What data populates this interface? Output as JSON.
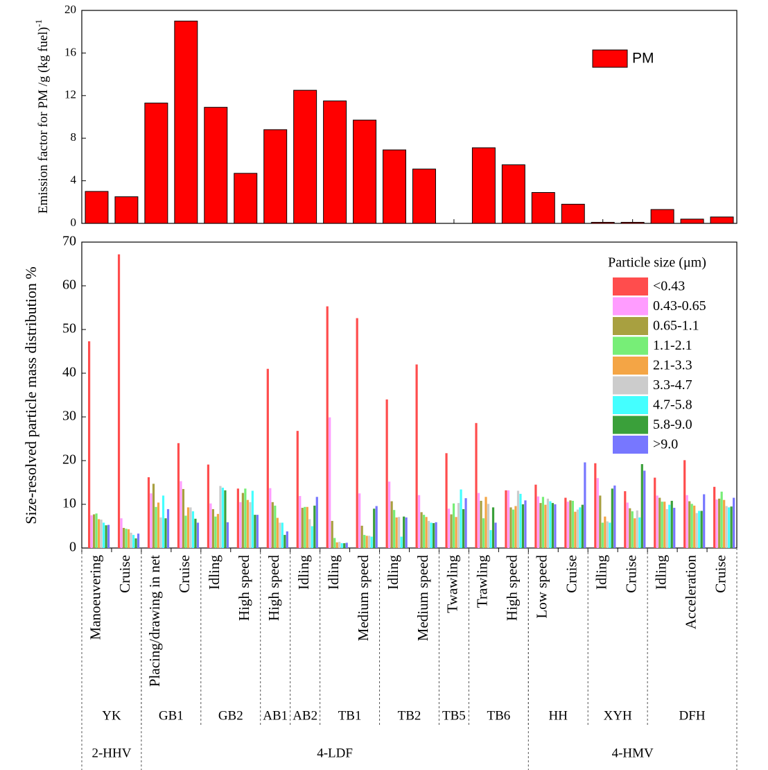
{
  "chart_data": [
    {
      "type": "bar",
      "y_label": "Emission factor for PM /g (kg fuel)",
      "y_label_sup": "-1",
      "series": [
        {
          "name": "PM",
          "color": "#ff0000",
          "values": [
            3.0,
            2.5,
            11.3,
            19.0,
            10.9,
            4.7,
            8.8,
            12.5,
            11.5,
            9.7,
            6.9,
            5.1,
            null,
            7.1,
            5.5,
            2.9,
            1.8,
            0.1,
            0.1,
            1.3,
            0.4,
            0.6
          ]
        }
      ],
      "ylim": [
        0,
        20
      ],
      "yticks": [
        0,
        4,
        8,
        12,
        16,
        20
      ],
      "legend": "upper right"
    },
    {
      "type": "grouped_bar",
      "y_label": "Size-resolved particle mass distribution %",
      "legend_title": "Particle size (μm)",
      "legend": "upper right",
      "categories": [
        "Manoeuvering",
        "Cruise",
        "Placing/drawing in net",
        "Cruise",
        "Idling",
        "High speed",
        "High speed",
        "Idling",
        "Idling",
        "Medium speed",
        "Idling",
        "Medium speed",
        "Twawling",
        "Trawling",
        "High speed",
        "Low speed",
        "Cruise",
        "Idling",
        "Cruise",
        "Idling",
        "Acceleration",
        "Cruise"
      ],
      "groups": [
        {
          "label": "YK",
          "size": 2
        },
        {
          "label": "GB1",
          "size": 2
        },
        {
          "label": "GB2",
          "size": 2
        },
        {
          "label": "AB1",
          "size": 1
        },
        {
          "label": "AB2",
          "size": 1
        },
        {
          "label": "TB1",
          "size": 2
        },
        {
          "label": "TB2",
          "size": 2
        },
        {
          "label": "TB5",
          "size": 1
        },
        {
          "label": "TB6",
          "size": 2
        },
        {
          "label": "HH",
          "size": 2
        },
        {
          "label": "XYH",
          "size": 2
        },
        {
          "label": "DFH",
          "size": 3
        }
      ],
      "types": [
        {
          "label": "2-HHV",
          "size": 2
        },
        {
          "label": "4-LDF",
          "size": 13
        },
        {
          "label": "4-HMV",
          "size": 7
        }
      ],
      "ylim": [
        0,
        70
      ],
      "yticks": [
        0,
        10,
        20,
        30,
        40,
        50,
        60,
        70
      ],
      "series": [
        {
          "name": "<0.43",
          "color": "#ff4d4d",
          "values": [
            47.3,
            67.2,
            16.2,
            24.0,
            19.1,
            13.6,
            41.0,
            26.8,
            55.3,
            52.6,
            34.0,
            42.0,
            21.7,
            28.6,
            13.2,
            14.5,
            11.5,
            19.4,
            13.0,
            16.1,
            20.1,
            14.0
          ]
        },
        {
          "name": "0.43-0.65",
          "color": "#ff9cff",
          "values": [
            7.5,
            6.8,
            12.5,
            15.3,
            10.2,
            10.5,
            13.7,
            11.9,
            29.9,
            12.5,
            15.2,
            12.1,
            9.0,
            12.6,
            13.2,
            11.8,
            10.6,
            16.0,
            10.4,
            12.0,
            12.1,
            11.1
          ]
        },
        {
          "name": "0.65-1.1",
          "color": "#a8a040",
          "values": [
            7.7,
            4.6,
            14.7,
            13.5,
            8.9,
            12.6,
            10.5,
            9.2,
            6.2,
            5.1,
            10.7,
            8.2,
            7.7,
            10.8,
            9.3,
            10.3,
            10.9,
            12.0,
            9.1,
            11.5,
            10.7,
            11.3
          ]
        },
        {
          "name": "1.1-2.1",
          "color": "#77ee77",
          "values": [
            7.9,
            4.4,
            9.4,
            7.4,
            7.2,
            13.6,
            9.7,
            9.4,
            2.3,
            3.0,
            8.7,
            7.6,
            10.2,
            6.8,
            8.8,
            11.7,
            10.8,
            5.8,
            8.4,
            10.6,
            10.1,
            12.9
          ]
        },
        {
          "name": "2.1-3.3",
          "color": "#f4a545",
          "values": [
            6.6,
            4.3,
            10.4,
            9.3,
            7.8,
            11.0,
            6.9,
            9.4,
            1.3,
            2.8,
            7.0,
            7.1,
            7.1,
            11.7,
            9.6,
            9.9,
            8.3,
            7.2,
            6.8,
            10.6,
            9.7,
            11.0
          ]
        },
        {
          "name": "3.3-4.7",
          "color": "#cccccc",
          "values": [
            6.5,
            3.5,
            7.0,
            9.3,
            14.2,
            10.5,
            5.8,
            6.6,
            1.4,
            2.8,
            7.1,
            6.2,
            10.3,
            10.1,
            13.1,
            11.3,
            8.8,
            6.1,
            8.6,
            8.9,
            8.0,
            9.6
          ]
        },
        {
          "name": "4.7-5.8",
          "color": "#44ffff",
          "values": [
            5.8,
            3.0,
            12.0,
            8.4,
            13.8,
            13.1,
            5.8,
            5.0,
            1.1,
            2.6,
            2.6,
            5.8,
            13.4,
            4.1,
            12.4,
            10.7,
            9.3,
            5.8,
            7.0,
            9.9,
            8.5,
            9.3
          ]
        },
        {
          "name": "5.8-9.0",
          "color": "#3aa03a",
          "values": [
            5.2,
            2.2,
            6.8,
            6.7,
            13.2,
            7.6,
            3.0,
            9.7,
            1.1,
            9.0,
            7.2,
            5.7,
            8.9,
            9.3,
            10.0,
            10.3,
            9.9,
            13.6,
            19.2,
            10.8,
            8.5,
            9.5
          ]
        },
        {
          "name": ">9.0",
          "color": "#7777ff",
          "values": [
            5.3,
            3.3,
            8.9,
            5.8,
            5.9,
            7.6,
            3.8,
            11.7,
            1.2,
            9.6,
            7.0,
            5.9,
            11.4,
            5.8,
            10.9,
            10.0,
            19.6,
            14.3,
            17.7,
            9.2,
            12.3,
            11.5
          ]
        }
      ]
    }
  ]
}
